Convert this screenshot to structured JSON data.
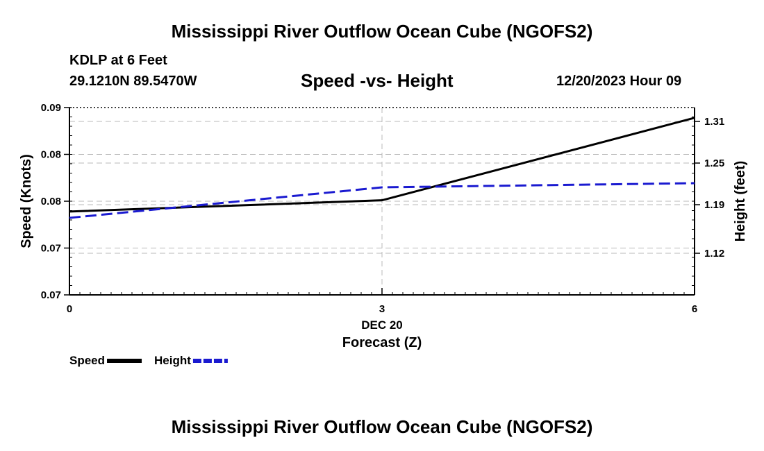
{
  "header": {
    "title": "Mississippi River Outflow Ocean Cube (NGOFS2)",
    "station": "KDLP at 6 Feet",
    "coords": "29.1210N  89.5470W",
    "subtitle": "Speed -vs- Height",
    "datetime": "12/20/2023 Hour 09"
  },
  "footer": {
    "title": "Mississippi River Outflow Ocean Cube (NGOFS2)"
  },
  "chart_data": {
    "type": "line",
    "title": "Speed -vs- Height",
    "xlabel": "Forecast (Z)",
    "xsublabel": "DEC 20",
    "ylabel_left": "Speed (Knots)",
    "ylabel_right": "Height (feet)",
    "x": [
      0,
      3,
      6
    ],
    "x_ticks": [
      "0",
      "3",
      "6"
    ],
    "xlim": [
      0,
      6
    ],
    "ylim_left": [
      0.07,
      0.09
    ],
    "ylim_right": [
      1.06,
      1.33
    ],
    "y_ticks_left": [
      {
        "value": 0.07,
        "label": "0.07"
      },
      {
        "value": 0.075,
        "label": "0.07"
      },
      {
        "value": 0.08,
        "label": "0.08"
      },
      {
        "value": 0.085,
        "label": "0.08"
      },
      {
        "value": 0.09,
        "label": "0.09"
      }
    ],
    "y_ticks_right": [
      {
        "value": 1.12,
        "label": "1.12"
      },
      {
        "value": 1.19,
        "label": "1.19"
      },
      {
        "value": 1.25,
        "label": "1.25"
      },
      {
        "value": 1.31,
        "label": "1.31"
      }
    ],
    "grid": true,
    "series": [
      {
        "name": "Speed",
        "axis": "left",
        "color": "#000000",
        "dash": false,
        "values": [
          0.0789,
          0.0801,
          0.0889
        ]
      },
      {
        "name": "Height",
        "axis": "right",
        "color": "#1a1ad0",
        "dash": true,
        "values": [
          1.171,
          1.215,
          1.221
        ]
      }
    ],
    "legend": "bottom-left"
  }
}
